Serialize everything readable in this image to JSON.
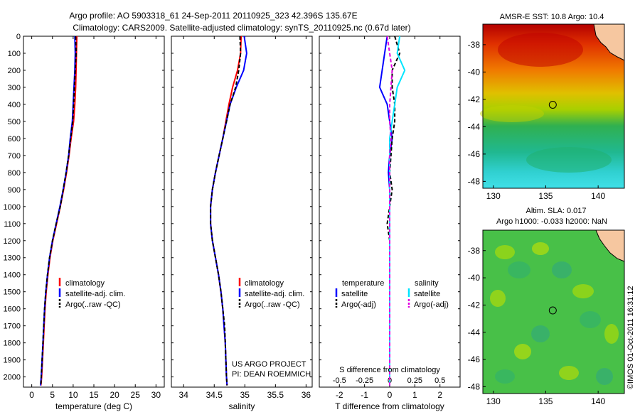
{
  "header": {
    "line1": "Argo profile: AO 5903318_61 24-Sep-2011 20110925_323 42.396S 135.67E",
    "line2": "Climatology: CARS2009. Satellite-adjusted climatology: synTS_20110925.nc (0.67d later)"
  },
  "colors": {
    "climatology": "#ff0000",
    "satellite": "#0000ff",
    "argo": "#000000",
    "sal_satellite": "#00e5ff",
    "sal_argo": "#e000e0"
  },
  "chart_data": [
    {
      "type": "line",
      "title": "",
      "xlabel": "temperature (deg C)",
      "ylabel": "",
      "xlim": [
        -2,
        32
      ],
      "ylim": [
        2060,
        0
      ],
      "xticks": [
        "0",
        "5",
        "10",
        "15",
        "20",
        "25",
        "30"
      ],
      "xtick_values": [
        0,
        5,
        10,
        15,
        20,
        25,
        30
      ],
      "yticks": [
        "0",
        "100",
        "200",
        "300",
        "400",
        "500",
        "600",
        "700",
        "800",
        "900",
        "1000",
        "1100",
        "1200",
        "1300",
        "1400",
        "1500",
        "1600",
        "1700",
        "1800",
        "1900",
        "2000"
      ],
      "ytick_values": [
        0,
        100,
        200,
        300,
        400,
        500,
        600,
        700,
        800,
        900,
        1000,
        1100,
        1200,
        1300,
        1400,
        1500,
        1600,
        1700,
        1800,
        1900,
        2000
      ],
      "legend": [
        "climatology",
        "satellite-adj. clim.",
        "Argo(..raw -QC)"
      ],
      "series": [
        {
          "name": "climatology",
          "color": "#ff0000",
          "dash": false,
          "x": [
            10.9,
            10.8,
            10.7,
            10.6,
            10.4,
            10.1,
            9.5,
            9.0,
            8.4,
            7.7,
            6.9,
            6.0,
            5.1,
            4.4,
            3.9,
            3.5,
            3.2,
            3.0,
            2.8,
            2.6,
            2.4,
            2.2
          ],
          "y": [
            0,
            100,
            200,
            300,
            400,
            500,
            600,
            700,
            800,
            900,
            1000,
            1100,
            1200,
            1300,
            1400,
            1500,
            1600,
            1700,
            1800,
            1900,
            2000,
            2050
          ]
        },
        {
          "name": "satellite-adj. clim.",
          "color": "#0000ff",
          "dash": false,
          "x": [
            10.4,
            10.5,
            10.4,
            10.2,
            10.0,
            9.8,
            9.3,
            8.9,
            8.3,
            7.6,
            6.8,
            5.9,
            5.0,
            4.3,
            3.8,
            3.4,
            3.1,
            2.9,
            2.7,
            2.5,
            2.3,
            2.1
          ],
          "y": [
            0,
            100,
            200,
            300,
            400,
            500,
            600,
            700,
            800,
            900,
            1000,
            1100,
            1200,
            1300,
            1400,
            1500,
            1600,
            1700,
            1800,
            1900,
            2000,
            2050
          ]
        },
        {
          "name": "Argo(..raw -QC)",
          "color": "#000000",
          "dash": true,
          "x": [
            10.6,
            10.7,
            10.5,
            10.3,
            10.1,
            9.9,
            9.4,
            8.9,
            8.3,
            7.6,
            6.9,
            5.9,
            5.0,
            4.3,
            3.8,
            3.4,
            3.1,
            2.9,
            2.7,
            2.5,
            2.3,
            2.2
          ],
          "y": [
            0,
            100,
            200,
            300,
            400,
            500,
            600,
            700,
            800,
            900,
            1000,
            1100,
            1200,
            1300,
            1400,
            1500,
            1600,
            1700,
            1800,
            1900,
            2000,
            2050
          ]
        }
      ]
    },
    {
      "type": "line",
      "title": "",
      "xlabel": "salinity",
      "ylabel": "",
      "xlim": [
        33.8,
        36.1
      ],
      "ylim": [
        2060,
        0
      ],
      "xticks": [
        "34",
        "34.5",
        "35",
        "35.5",
        "36"
      ],
      "xtick_values": [
        34,
        34.5,
        35,
        35.5,
        36
      ],
      "legend": [
        "climatology",
        "satellite-adj. clim.",
        "Argo(..raw -QC)"
      ],
      "annotations": [
        "US ARGO PROJECT",
        "PI: DEAN ROEMMICH"
      ],
      "series": [
        {
          "name": "climatology",
          "color": "#ff0000",
          "dash": false,
          "x": [
            34.94,
            34.93,
            34.88,
            34.8,
            34.74,
            34.69,
            34.64,
            34.58,
            34.52,
            34.47,
            34.44,
            34.44,
            34.47,
            34.52,
            34.57,
            34.61,
            34.64,
            34.66,
            34.68,
            34.69,
            34.7,
            34.71
          ],
          "y": [
            0,
            100,
            200,
            300,
            400,
            500,
            600,
            700,
            800,
            900,
            1000,
            1100,
            1200,
            1300,
            1400,
            1500,
            1600,
            1700,
            1800,
            1900,
            2000,
            2050
          ]
        },
        {
          "name": "satellite-adj. clim.",
          "color": "#0000ff",
          "dash": false,
          "x": [
            34.99,
            35.03,
            34.98,
            34.86,
            34.76,
            34.7,
            34.64,
            34.58,
            34.52,
            34.47,
            34.44,
            34.44,
            34.47,
            34.52,
            34.57,
            34.61,
            34.64,
            34.66,
            34.68,
            34.69,
            34.7,
            34.71
          ],
          "y": [
            0,
            100,
            200,
            300,
            400,
            500,
            600,
            700,
            800,
            900,
            1000,
            1100,
            1200,
            1300,
            1400,
            1500,
            1600,
            1700,
            1800,
            1900,
            2000,
            2050
          ]
        },
        {
          "name": "Argo(..raw -QC)",
          "color": "#000000",
          "dash": true,
          "x": [
            34.92,
            34.93,
            34.9,
            34.85,
            34.76,
            34.7,
            34.64,
            34.58,
            34.52,
            34.47,
            34.44,
            34.44,
            34.47,
            34.52,
            34.57,
            34.61,
            34.64,
            34.67,
            34.68,
            34.69,
            34.7,
            34.71
          ],
          "y": [
            0,
            100,
            200,
            300,
            400,
            500,
            600,
            700,
            800,
            900,
            1000,
            1100,
            1200,
            1300,
            1400,
            1500,
            1600,
            1700,
            1800,
            1900,
            2000,
            2050
          ]
        }
      ]
    },
    {
      "type": "line",
      "title": "",
      "xlabel": "T difference from climatology",
      "xlabel_top": "S difference from climatology",
      "ylabel": "",
      "xlim": [
        -2.8,
        2.8
      ],
      "ylim": [
        2060,
        0
      ],
      "xticks": [
        "-2",
        "-1",
        "0",
        "1",
        "2"
      ],
      "xtick_values": [
        -2,
        -1,
        0,
        1,
        2
      ],
      "xticks_top": [
        "-0.5",
        "-0.25",
        "0",
        "0.25",
        "0.5"
      ],
      "xtick_top_positions": [
        -2,
        -1,
        0,
        1,
        2
      ],
      "legend_titles": [
        "temperature",
        "salinity"
      ],
      "legend": [
        "satellite",
        "Argo(-adj)",
        "satellite",
        "Argo(-adj)"
      ],
      "series": [
        {
          "name": "temperature satellite",
          "color": "#0000ff",
          "dash": false,
          "x": [
            -0.1,
            -0.2,
            -0.3,
            -0.4,
            -0.1,
            0.0,
            0.1,
            0.0,
            -0.05,
            0.0,
            0.0,
            0.0,
            0.0,
            0.0,
            0.0,
            0.0,
            0.0,
            0.0,
            0.0,
            0.0,
            0.0
          ],
          "y": [
            0,
            100,
            200,
            300,
            400,
            500,
            600,
            700,
            800,
            900,
            1000,
            1100,
            1200,
            1300,
            1400,
            1500,
            1600,
            1700,
            1800,
            1900,
            2050
          ]
        },
        {
          "name": "temperature Argo(-adj)",
          "color": "#000000",
          "dash": true,
          "x": [
            0.2,
            0.4,
            0.1,
            0.1,
            0.2,
            0.2,
            0.1,
            0.05,
            0.0,
            0.1,
            0.0,
            -0.1,
            0.0,
            0.0,
            0.0,
            0.0,
            0.0,
            0.0,
            0.0,
            0.0,
            0.0
          ],
          "y": [
            0,
            100,
            200,
            300,
            400,
            500,
            600,
            700,
            800,
            900,
            1000,
            1100,
            1200,
            1300,
            1400,
            1500,
            1600,
            1700,
            1800,
            1900,
            2050
          ]
        },
        {
          "name": "salinity satellite",
          "color": "#00e5ff",
          "dash": false,
          "x": [
            0.4,
            0.3,
            0.6,
            0.3,
            0.2,
            0.1,
            0.0,
            0.0,
            0.0,
            0.0,
            0.0,
            0.0,
            0.0,
            0.0,
            0.0,
            0.0,
            0.0,
            0.0,
            0.0,
            0.0,
            0.0
          ],
          "y": [
            0,
            100,
            200,
            300,
            400,
            500,
            600,
            700,
            800,
            900,
            1000,
            1100,
            1200,
            1300,
            1400,
            1500,
            1600,
            1700,
            1800,
            1900,
            2050
          ]
        },
        {
          "name": "salinity Argo(-adj)",
          "color": "#e000e0",
          "dash": true,
          "x": [
            -0.1,
            0.0,
            0.1,
            0.05,
            0.0,
            0.0,
            0.05,
            0.0,
            0.0,
            0.0,
            0.0,
            0.0,
            0.0,
            0.0,
            0.0,
            0.0,
            0.0,
            0.0,
            0.0,
            0.0,
            0.0
          ],
          "y": [
            0,
            100,
            200,
            300,
            400,
            500,
            600,
            700,
            800,
            900,
            1000,
            1100,
            1200,
            1300,
            1400,
            1500,
            1600,
            1700,
            1800,
            1900,
            2050
          ]
        }
      ]
    },
    {
      "type": "heatmap",
      "title": "AMSR-E SST: 10.8 Argo: 10.4",
      "xlim": [
        129,
        142.5
      ],
      "ylim": [
        -48.5,
        -36.5
      ],
      "xticks": [
        "130",
        "135",
        "140"
      ],
      "xtick_values": [
        130,
        135,
        140
      ],
      "yticks": [
        "-38",
        "-40",
        "-42",
        "-44",
        "-46",
        "-48"
      ],
      "ytick_values": [
        -38,
        -40,
        -42,
        -44,
        -46,
        -48
      ],
      "marker": {
        "lon": 135.67,
        "lat": -42.396
      }
    },
    {
      "type": "heatmap",
      "title_lines": [
        "Altim. SLA: 0.017",
        "Argo h1000: -0.033 h2000: NaN"
      ],
      "xlim": [
        129,
        142.5
      ],
      "ylim": [
        -48.5,
        -36.5
      ],
      "xticks": [
        "130",
        "135",
        "140"
      ],
      "xtick_values": [
        130,
        135,
        140
      ],
      "yticks": [
        "-38",
        "-40",
        "-42",
        "-44",
        "-46",
        "-48"
      ],
      "ytick_values": [
        -38,
        -40,
        -42,
        -44,
        -46,
        -48
      ],
      "marker": {
        "lon": 135.67,
        "lat": -42.396
      }
    }
  ],
  "footer_stamp": "©IMOS 01-Oct-2011 16:31:12"
}
